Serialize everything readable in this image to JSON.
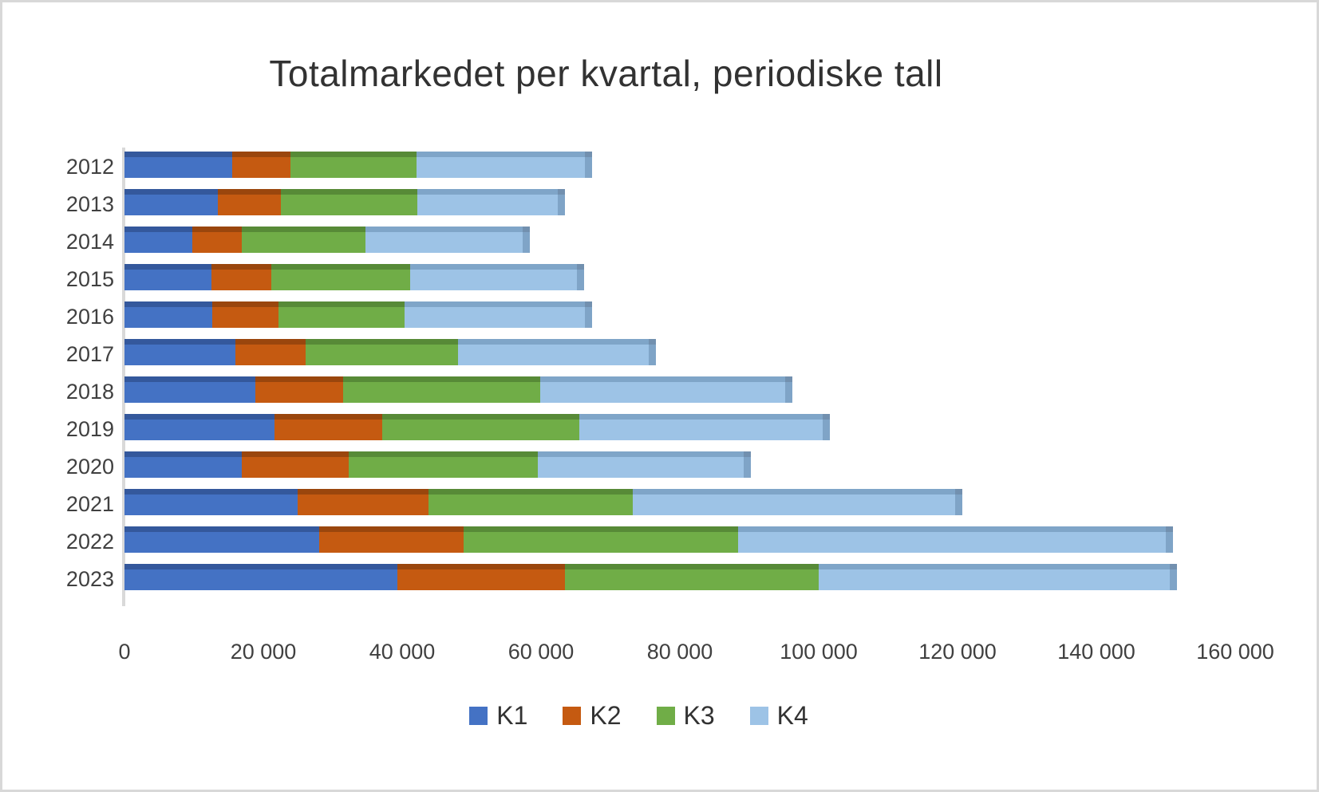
{
  "title": "Totalmarkedet per kvartal, periodiske tall",
  "axis": {
    "x_tick_labels": [
      "0",
      "20 000",
      "40 000",
      "60 000",
      "80 000",
      "100 000",
      "120 000",
      "140 000",
      "160 000"
    ],
    "x_min": 0,
    "x_max": 160000,
    "y_labels": [
      "2012",
      "2013",
      "2014",
      "2015",
      "2016",
      "2017",
      "2018",
      "2019",
      "2020",
      "2021",
      "2022",
      "2023"
    ]
  },
  "legend": {
    "position": "bottom",
    "items": [
      {
        "label": "K1",
        "color": "#4472C4"
      },
      {
        "label": "K2",
        "color": "#C55A11"
      },
      {
        "label": "K3",
        "color": "#70AD47"
      },
      {
        "label": "K4",
        "color": "#9DC3E6"
      }
    ]
  },
  "colors": {
    "axis_line": "#D9D9D9",
    "text": "#404040",
    "title_text": "#323232",
    "frame_border": "#D8D8D8",
    "background": "#FFFFFF",
    "bar_end_cap": "#7FA4C7",
    "bar_end_cap_dark": "#7290AF"
  },
  "chart_data": {
    "type": "bar",
    "orientation": "horizontal",
    "stacked": true,
    "effect": "3d-bevel",
    "title": "Totalmarkedet per kvartal, periodiske tall",
    "xlabel": "",
    "ylabel": "",
    "xlim": [
      0,
      160000
    ],
    "grid": false,
    "legend_position": "bottom",
    "categories": [
      "2012",
      "2013",
      "2014",
      "2015",
      "2016",
      "2017",
      "2018",
      "2019",
      "2020",
      "2021",
      "2022",
      "2023"
    ],
    "series": [
      {
        "name": "K1",
        "color": "#4472C4",
        "color_dark": "#34589C",
        "values": [
          15500,
          13500,
          9800,
          12500,
          12700,
          16000,
          18800,
          21600,
          16900,
          24900,
          28100,
          39300
        ]
      },
      {
        "name": "K2",
        "color": "#C55A11",
        "color_dark": "#9A460D",
        "values": [
          8400,
          9000,
          7100,
          8700,
          9500,
          10100,
          12700,
          15500,
          15400,
          18900,
          20800,
          24200
        ]
      },
      {
        "name": "K3",
        "color": "#70AD47",
        "color_dark": "#578A37",
        "values": [
          18200,
          19700,
          17800,
          19900,
          18100,
          21900,
          28400,
          28400,
          27300,
          29400,
          39500,
          36500
        ]
      },
      {
        "name": "K4",
        "color": "#9DC3E6",
        "color_dark": "#7FA5C8",
        "values": [
          24200,
          20200,
          22700,
          24100,
          26000,
          27500,
          35300,
          35100,
          29600,
          46500,
          61600,
          50600
        ]
      }
    ],
    "totals": [
      66300,
      62400,
      57400,
      65200,
      66300,
      75500,
      95200,
      100600,
      89200,
      119700,
      150000,
      150600
    ]
  }
}
